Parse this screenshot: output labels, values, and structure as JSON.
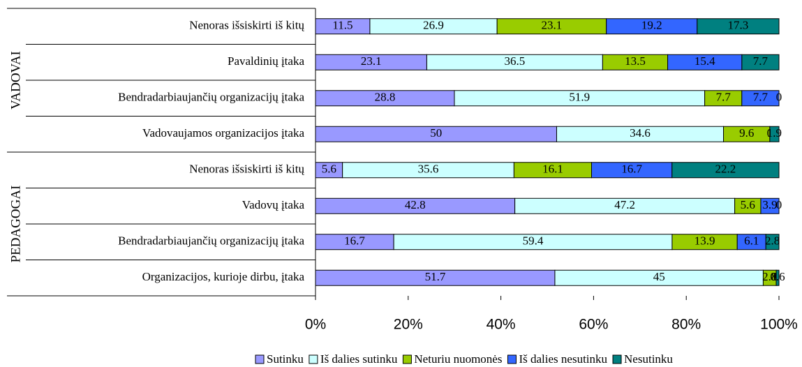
{
  "chart_data": {
    "type": "bar",
    "orientation": "horizontal",
    "stacking": "percent",
    "group_labels": [
      "VADOVAI",
      "PEDAGOGAI"
    ],
    "categories": [
      "Nenoras išsiskirti iš kitų",
      "Pavaldinių įtaka",
      "Bendradarbiaujančių organizacijų įtaka",
      "Vadovaujamos organizacijos įtaka",
      "Nenoras išsiskirti iš kitų",
      "Vadovų įtaka",
      "Bendradarbiaujančių organizacijų įtaka",
      "Organizacijos, kurioje dirbu, įtaka"
    ],
    "series": [
      {
        "name": "Sutinku",
        "color": "#9999ff",
        "values": [
          11.5,
          23.1,
          28.8,
          50,
          5.6,
          42.8,
          16.7,
          51.7
        ]
      },
      {
        "name": "Iš dalies sutinku",
        "color": "#ccffff",
        "values": [
          26.9,
          36.5,
          51.9,
          34.6,
          35.6,
          47.2,
          59.4,
          45
        ]
      },
      {
        "name": "Neturiu nuomonės",
        "color": "#99cc00",
        "values": [
          23.1,
          13.5,
          7.7,
          9.6,
          16.1,
          5.6,
          13.9,
          2.8
        ]
      },
      {
        "name": "Iš dalies nesutinku",
        "color": "#3366ff",
        "values": [
          19.2,
          15.4,
          7.7,
          0,
          16.7,
          3.9,
          6.1,
          0
        ]
      },
      {
        "name": "Nesutinku",
        "color": "#008080",
        "values": [
          17.3,
          7.7,
          0,
          1.9,
          22.2,
          0,
          2.8,
          0.6
        ]
      }
    ],
    "xlim": [
      0,
      100
    ],
    "xticks": [
      {
        "value": 0,
        "label": "0%"
      },
      {
        "value": 20,
        "label": "20%"
      },
      {
        "value": 40,
        "label": "40%"
      },
      {
        "value": 60,
        "label": "60%"
      },
      {
        "value": 80,
        "label": "80%"
      },
      {
        "value": 100,
        "label": "100%"
      }
    ],
    "legend": "bottom"
  }
}
